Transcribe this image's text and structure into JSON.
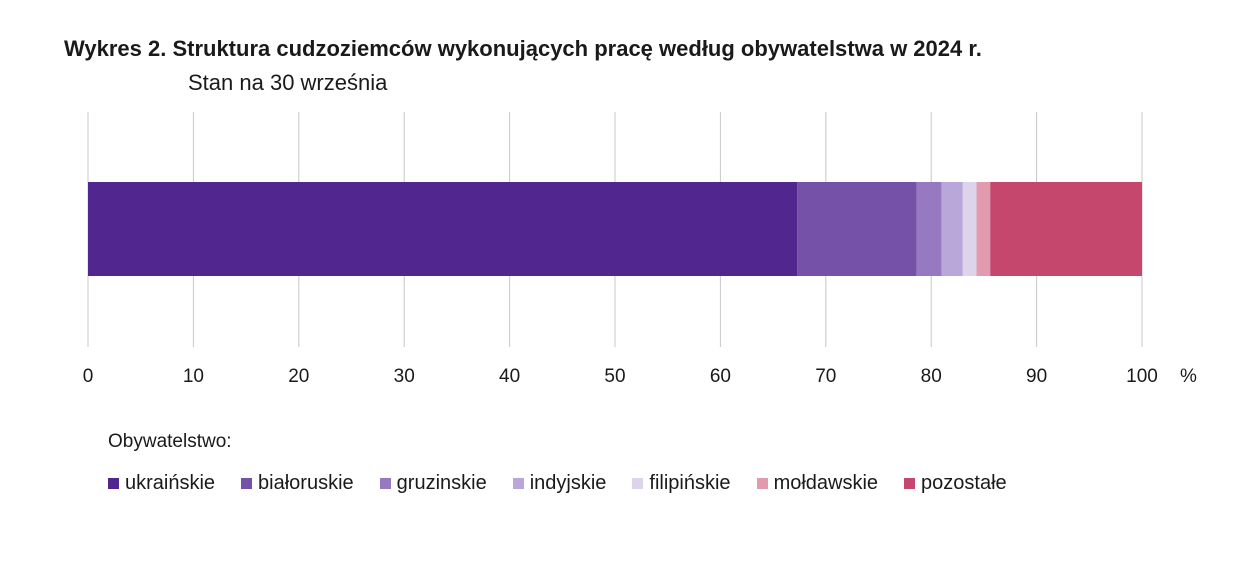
{
  "chart_data": {
    "type": "bar",
    "orientation": "horizontal-stacked",
    "title": "Wykres 2. Struktura cudzoziemców wykonujących pracę według obywatelstwa w 2024 r.",
    "subtitle": "Stan na 30 września",
    "xlabel": "%",
    "ylabel": "",
    "xlim": [
      0,
      100
    ],
    "xticks": [
      0,
      10,
      20,
      30,
      40,
      50,
      60,
      70,
      80,
      90,
      100
    ],
    "grid": "vertical",
    "legend_title": "Obywatelstwo:",
    "legend_position": "bottom",
    "series": [
      {
        "name": "ukraińskie",
        "value": 67.3,
        "color": "#51278f"
      },
      {
        "name": "białoruskie",
        "value": 11.3,
        "color": "#7552a8"
      },
      {
        "name": "gruzinskie",
        "value": 2.4,
        "color": "#9679c0"
      },
      {
        "name": "indyjskie",
        "value": 2.0,
        "color": "#b9a7d9"
      },
      {
        "name": "filipińskie",
        "value": 1.3,
        "color": "#ddd4ec"
      },
      {
        "name": "mołdawskie",
        "value": 1.3,
        "color": "#e29aaf"
      },
      {
        "name": "pozostałe",
        "value": 14.4,
        "color": "#c5476e"
      }
    ]
  }
}
